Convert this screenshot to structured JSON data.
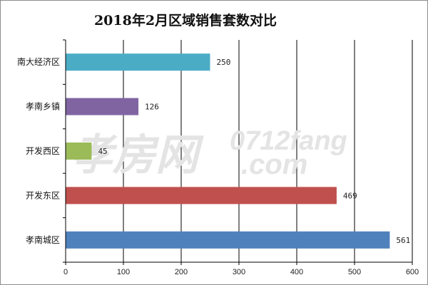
{
  "chart_data": {
    "type": "bar",
    "orientation": "horizontal",
    "title": "2018年2月区域销售套数对比",
    "categories": [
      "南大经济区",
      "孝南乡镇",
      "开发西区",
      "开发东区",
      "孝南城区"
    ],
    "values": [
      250,
      126,
      45,
      469,
      561
    ],
    "colors": [
      "#4bacc6",
      "#8064a2",
      "#9bbb59",
      "#c0504d",
      "#4f81bd"
    ],
    "xlim": [
      0,
      600
    ],
    "xticks": [
      0,
      100,
      200,
      300,
      400,
      500,
      600
    ],
    "grid": true,
    "legend": "none"
  },
  "watermark": {
    "text": "孝房网 0712fang .com"
  }
}
